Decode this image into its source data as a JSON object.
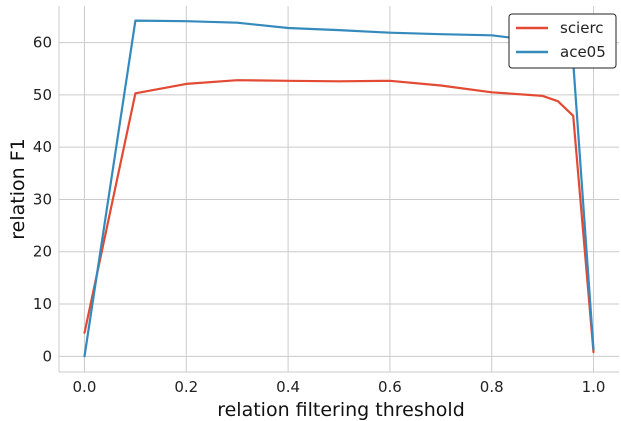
{
  "chart_data": {
    "type": "line",
    "title": "",
    "xlabel": "relation filtering threshold",
    "ylabel": "relation F1",
    "xlim": [
      -0.05,
      1.05
    ],
    "ylim": [
      -3,
      67
    ],
    "xticks": [
      0.0,
      0.2,
      0.4,
      0.6,
      0.8,
      1.0
    ],
    "xtick_labels": [
      "0.0",
      "0.2",
      "0.4",
      "0.6",
      "0.8",
      "1.0"
    ],
    "yticks": [
      0,
      10,
      20,
      30,
      40,
      50,
      60
    ],
    "ytick_labels": [
      "0",
      "10",
      "20",
      "30",
      "40",
      "50",
      "60"
    ],
    "grid": true,
    "legend_position": "top-right",
    "series": [
      {
        "name": "scierc",
        "color": "#e24a33",
        "x": [
          0.0,
          0.1,
          0.2,
          0.3,
          0.4,
          0.5,
          0.6,
          0.7,
          0.8,
          0.9,
          0.93,
          0.96,
          1.0
        ],
        "y": [
          4.5,
          50.3,
          52.1,
          52.8,
          52.7,
          52.6,
          52.7,
          51.8,
          50.5,
          49.8,
          48.8,
          46.0,
          0.8
        ]
      },
      {
        "name": "ace05",
        "color": "#348abd",
        "x": [
          0.0,
          0.1,
          0.2,
          0.3,
          0.4,
          0.5,
          0.6,
          0.7,
          0.8,
          0.9,
          0.93,
          0.96,
          1.0
        ],
        "y": [
          0.0,
          64.2,
          64.1,
          63.8,
          62.8,
          62.4,
          61.9,
          61.6,
          61.4,
          60.2,
          59.0,
          56.3,
          1.3
        ]
      }
    ]
  }
}
